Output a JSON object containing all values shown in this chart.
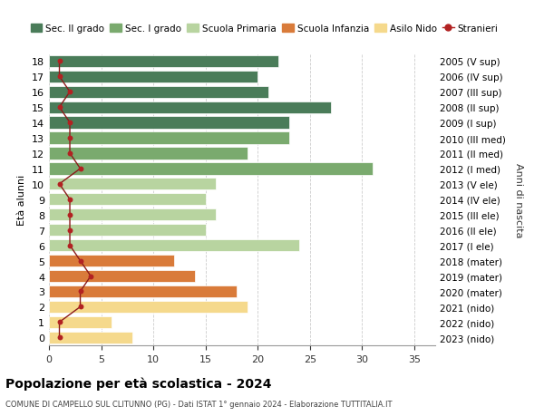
{
  "ages": [
    18,
    17,
    16,
    15,
    14,
    13,
    12,
    11,
    10,
    9,
    8,
    7,
    6,
    5,
    4,
    3,
    2,
    1,
    0
  ],
  "right_labels": [
    "2005 (V sup)",
    "2006 (IV sup)",
    "2007 (III sup)",
    "2008 (II sup)",
    "2009 (I sup)",
    "2010 (III med)",
    "2011 (II med)",
    "2012 (I med)",
    "2013 (V ele)",
    "2014 (IV ele)",
    "2015 (III ele)",
    "2016 (II ele)",
    "2017 (I ele)",
    "2018 (mater)",
    "2019 (mater)",
    "2020 (mater)",
    "2021 (nido)",
    "2022 (nido)",
    "2023 (nido)"
  ],
  "bar_values": [
    22,
    20,
    21,
    27,
    23,
    23,
    19,
    31,
    16,
    15,
    16,
    15,
    24,
    12,
    14,
    18,
    19,
    6,
    8
  ],
  "stranieri_values": [
    1,
    1,
    2,
    1,
    2,
    2,
    2,
    3,
    1,
    2,
    2,
    2,
    2,
    3,
    4,
    3,
    3,
    1,
    1
  ],
  "bar_colors": [
    "#4a7c59",
    "#4a7c59",
    "#4a7c59",
    "#4a7c59",
    "#4a7c59",
    "#7aaa6e",
    "#7aaa6e",
    "#7aaa6e",
    "#b8d4a0",
    "#b8d4a0",
    "#b8d4a0",
    "#b8d4a0",
    "#b8d4a0",
    "#d97b3a",
    "#d97b3a",
    "#d97b3a",
    "#f5d98c",
    "#f5d98c",
    "#f5d98c"
  ],
  "legend_labels": [
    "Sec. II grado",
    "Sec. I grado",
    "Scuola Primaria",
    "Scuola Infanzia",
    "Asilo Nido",
    "Stranieri"
  ],
  "legend_colors": [
    "#4a7c59",
    "#7aaa6e",
    "#b8d4a0",
    "#d97b3a",
    "#f5d98c",
    "#b22222"
  ],
  "ylabel_left": "Età alunni",
  "ylabel_right": "Anni di nascita",
  "title": "Popolazione per età scolastica - 2024",
  "subtitle": "COMUNE DI CAMPELLO SUL CLITUNNO (PG) - Dati ISTAT 1° gennaio 2024 - Elaborazione TUTTITALIA.IT",
  "xlim": [
    0,
    37
  ],
  "xticks": [
    0,
    5,
    10,
    15,
    20,
    25,
    30,
    35
  ],
  "background_color": "#ffffff",
  "grid_color": "#cccccc"
}
